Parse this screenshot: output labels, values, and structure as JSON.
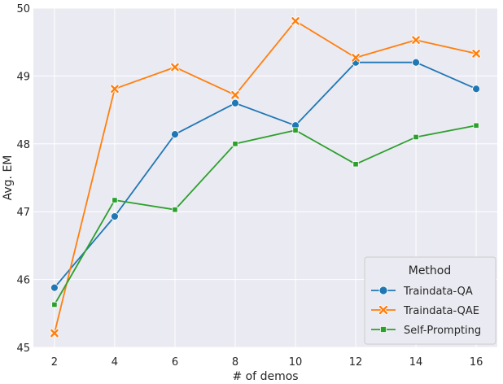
{
  "chart_data": {
    "type": "line",
    "xlabel": "# of demos",
    "ylabel": "Avg. EM",
    "x": [
      2,
      4,
      6,
      8,
      10,
      12,
      14,
      16
    ],
    "xticks": [
      "2",
      "4",
      "6",
      "8",
      "10",
      "12",
      "14",
      "16"
    ],
    "yticks": [
      "45",
      "46",
      "47",
      "48",
      "49",
      "50"
    ],
    "xlim": [
      1.3,
      16.7
    ],
    "ylim": [
      45,
      50
    ],
    "grid": true,
    "legend": {
      "title": "Method",
      "placement": "lower-right"
    },
    "series": [
      {
        "name": "Traindata-QA",
        "color": "#1f77b4",
        "marker": "circle",
        "values": [
          45.88,
          46.93,
          48.14,
          48.6,
          48.27,
          49.2,
          49.2,
          48.81
        ]
      },
      {
        "name": "Traindata-QAE",
        "color": "#ff7f0e",
        "marker": "x",
        "values": [
          45.21,
          48.81,
          49.13,
          48.72,
          49.81,
          49.27,
          49.53,
          49.33
        ]
      },
      {
        "name": "Self-Prompting",
        "color": "#2ca02c",
        "marker": "square",
        "values": [
          45.63,
          47.17,
          47.03,
          48.0,
          48.2,
          47.7,
          48.1,
          48.27
        ]
      }
    ]
  }
}
